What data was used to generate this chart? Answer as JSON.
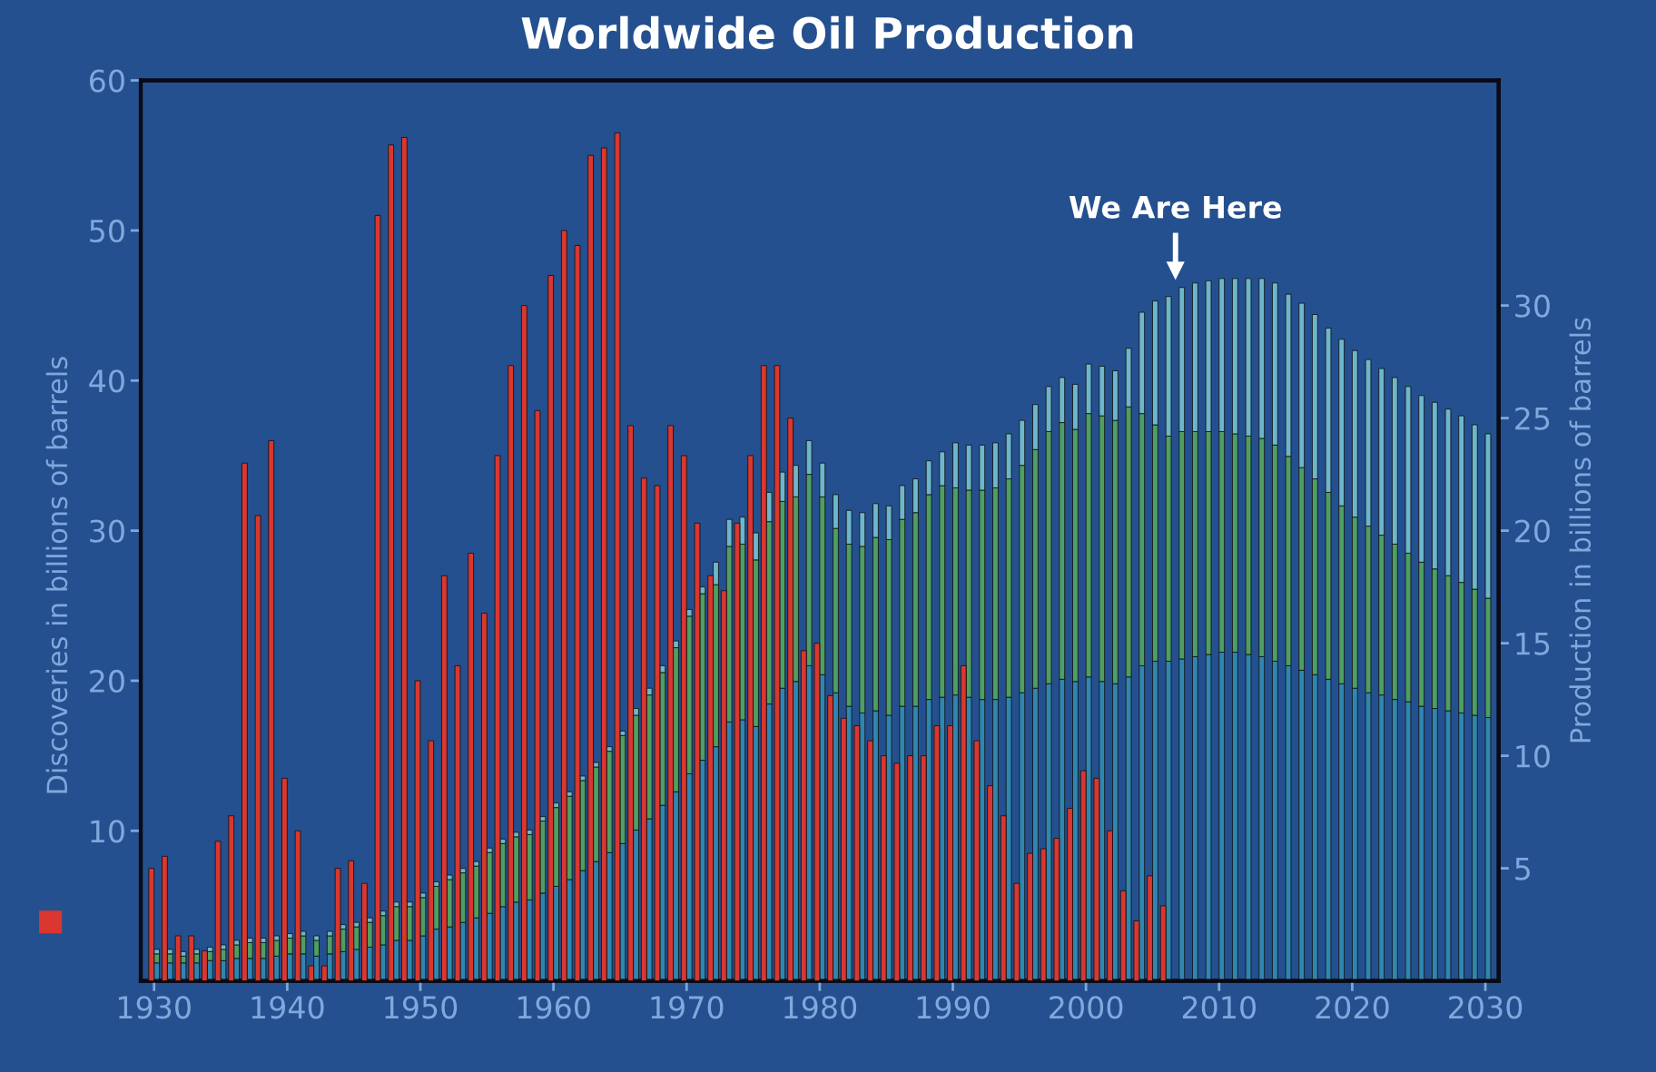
{
  "chart_data": {
    "type": "bar",
    "title": "Worldwide Oil Production",
    "ylabel": "Discoveries in billions of barrels",
    "y2label": "Production in billions of barrels",
    "x": [
      1930,
      1931,
      1932,
      1933,
      1934,
      1935,
      1936,
      1937,
      1938,
      1939,
      1940,
      1941,
      1942,
      1943,
      1944,
      1945,
      1946,
      1947,
      1948,
      1949,
      1950,
      1951,
      1952,
      1953,
      1954,
      1955,
      1956,
      1957,
      1958,
      1959,
      1960,
      1961,
      1962,
      1963,
      1964,
      1965,
      1966,
      1967,
      1968,
      1969,
      1970,
      1971,
      1972,
      1973,
      1974,
      1975,
      1976,
      1977,
      1978,
      1979,
      1980,
      1981,
      1982,
      1983,
      1984,
      1985,
      1986,
      1987,
      1988,
      1989,
      1990,
      1991,
      1992,
      1993,
      1994,
      1995,
      1996,
      1997,
      1998,
      1999,
      2000,
      2001,
      2002,
      2003,
      2004,
      2005,
      2006,
      2007,
      2008,
      2009,
      2010,
      2011,
      2012,
      2013,
      2014,
      2015,
      2016,
      2017,
      2018,
      2019,
      2020,
      2021,
      2022,
      2023,
      2024,
      2025,
      2026,
      2027,
      2028,
      2029,
      2030
    ],
    "stacked": true,
    "series": [
      {
        "color": "#2f86b0",
        "axis": "y2",
        "values": [
          0.8,
          0.8,
          0.8,
          0.8,
          0.9,
          0.9,
          1.0,
          1.0,
          1.0,
          1.1,
          1.2,
          1.2,
          1.1,
          1.2,
          1.3,
          1.4,
          1.5,
          1.6,
          1.8,
          1.8,
          2.0,
          2.3,
          2.4,
          2.6,
          2.8,
          3.0,
          3.3,
          3.5,
          3.6,
          3.9,
          4.2,
          4.5,
          4.9,
          5.3,
          5.7,
          6.1,
          6.7,
          7.2,
          7.8,
          8.4,
          9.2,
          9.8,
          10.4,
          11.5,
          11.6,
          11.3,
          12.3,
          13.0,
          13.3,
          14.0,
          13.6,
          12.8,
          12.2,
          11.9,
          12.0,
          11.8,
          12.2,
          12.2,
          12.5,
          12.6,
          12.7,
          12.6,
          12.5,
          12.5,
          12.6,
          12.8,
          13.0,
          13.2,
          13.4,
          13.3,
          13.5,
          13.3,
          13.2,
          13.5,
          14.0,
          14.2,
          14.2,
          14.3,
          14.4,
          14.5,
          14.6,
          14.6,
          14.5,
          14.4,
          14.2,
          14.0,
          13.8,
          13.6,
          13.4,
          13.2,
          13.0,
          12.8,
          12.7,
          12.5,
          12.4,
          12.2,
          12.1,
          12.0,
          11.9,
          11.8,
          11.7
        ]
      },
      {
        "color": "#4f9e63",
        "axis": "y2",
        "values": [
          0.4,
          0.4,
          0.3,
          0.4,
          0.4,
          0.5,
          0.6,
          0.7,
          0.7,
          0.7,
          0.7,
          0.8,
          0.7,
          0.8,
          1.0,
          1.0,
          1.1,
          1.3,
          1.5,
          1.5,
          1.7,
          1.9,
          2.1,
          2.2,
          2.3,
          2.7,
          2.8,
          2.9,
          2.9,
          3.2,
          3.5,
          3.7,
          4.0,
          4.2,
          4.5,
          4.8,
          5.1,
          5.5,
          5.9,
          6.4,
          7.0,
          7.4,
          7.2,
          7.8,
          7.8,
          7.4,
          8.1,
          8.3,
          8.2,
          8.5,
          7.9,
          7.3,
          7.2,
          7.4,
          7.7,
          7.8,
          8.3,
          8.6,
          9.1,
          9.4,
          9.2,
          9.2,
          9.3,
          9.4,
          9.7,
          10.1,
          10.6,
          11.2,
          11.4,
          11.2,
          11.7,
          11.8,
          11.7,
          12.0,
          11.2,
          10.5,
          10.0,
          10.1,
          10.0,
          9.9,
          9.8,
          9.7,
          9.7,
          9.7,
          9.6,
          9.3,
          9.0,
          8.7,
          8.3,
          7.9,
          7.6,
          7.4,
          7.1,
          6.9,
          6.6,
          6.4,
          6.2,
          6.0,
          5.8,
          5.6,
          5.3
        ]
      },
      {
        "color": "#6db6cc",
        "axis": "y2",
        "values": [
          0.2,
          0.2,
          0.2,
          0.2,
          0.2,
          0.2,
          0.2,
          0.2,
          0.2,
          0.2,
          0.2,
          0.2,
          0.2,
          0.2,
          0.2,
          0.2,
          0.2,
          0.2,
          0.2,
          0.2,
          0.2,
          0.2,
          0.2,
          0.2,
          0.2,
          0.2,
          0.2,
          0.2,
          0.2,
          0.2,
          0.2,
          0.2,
          0.2,
          0.2,
          0.2,
          0.2,
          0.3,
          0.3,
          0.3,
          0.3,
          0.3,
          0.3,
          1.0,
          1.2,
          1.2,
          1.2,
          1.3,
          1.3,
          1.4,
          1.5,
          1.5,
          1.5,
          1.5,
          1.5,
          1.5,
          1.5,
          1.5,
          1.5,
          1.5,
          1.5,
          2.0,
          2.0,
          2.0,
          2.0,
          2.0,
          2.0,
          2.0,
          2.0,
          2.0,
          2.0,
          2.2,
          2.2,
          2.2,
          2.6,
          4.5,
          5.5,
          6.2,
          6.4,
          6.6,
          6.7,
          6.8,
          6.9,
          7.0,
          7.1,
          7.2,
          7.2,
          7.3,
          7.3,
          7.3,
          7.4,
          7.4,
          7.4,
          7.4,
          7.4,
          7.4,
          7.4,
          7.4,
          7.4,
          7.4,
          7.3,
          7.3
        ]
      },
      {
        "color": "#d9372f",
        "values": [
          7.5,
          8.3,
          3,
          3,
          2,
          9.3,
          11,
          34.5,
          31,
          36,
          13.5,
          10,
          1,
          1,
          7.5,
          8,
          6.5,
          51,
          55.7,
          56.2,
          20,
          16,
          27,
          21,
          28.5,
          24.5,
          35,
          41,
          45,
          38,
          47,
          50,
          49,
          55,
          55.5,
          56.5,
          37,
          33.5,
          33,
          37,
          35,
          30.5,
          27,
          26,
          30.5,
          35,
          41,
          41,
          37.5,
          22,
          22.5,
          19,
          17.5,
          17,
          16,
          15,
          14.5,
          15,
          15,
          17,
          17,
          21,
          16,
          13,
          11,
          6.5,
          8.5,
          8.8,
          9.5,
          11.5,
          14,
          13.5,
          10,
          6,
          4,
          7,
          5,
          null,
          null,
          null,
          null,
          null,
          null,
          null,
          null,
          null,
          null,
          null,
          null,
          null,
          null,
          null,
          null,
          null,
          null,
          null,
          null,
          null,
          null,
          null,
          null
        ]
      }
    ],
    "xlim": [
      1929,
      2031
    ],
    "xticks": [
      1930,
      1940,
      1950,
      1960,
      1970,
      1980,
      1990,
      2000,
      2010,
      2020,
      2030
    ],
    "ylim": [
      0,
      60
    ],
    "yticks": [
      10,
      20,
      30,
      40,
      50,
      60
    ],
    "y2lim": [
      0,
      40
    ],
    "y2ticks": [
      5,
      10,
      15,
      20,
      25,
      30
    ],
    "annotations": [
      "We Are Here"
    ],
    "legend": false,
    "grid": false
  }
}
